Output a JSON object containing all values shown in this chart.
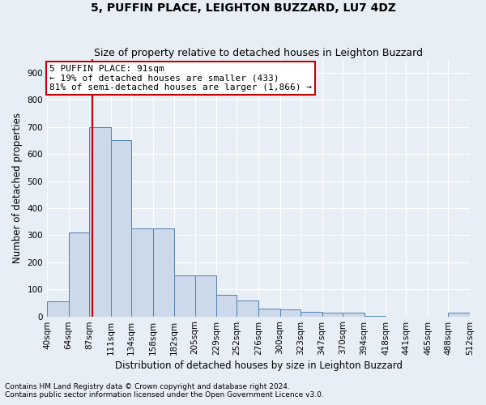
{
  "title": "5, PUFFIN PLACE, LEIGHTON BUZZARD, LU7 4DZ",
  "subtitle": "Size of property relative to detached houses in Leighton Buzzard",
  "xlabel": "Distribution of detached houses by size in Leighton Buzzard",
  "ylabel": "Number of detached properties",
  "footnote1": "Contains HM Land Registry data © Crown copyright and database right 2024.",
  "footnote2": "Contains public sector information licensed under the Open Government Licence v3.0.",
  "bin_edges": [
    40,
    64,
    87,
    111,
    134,
    158,
    182,
    205,
    229,
    252,
    276,
    300,
    323,
    347,
    370,
    394,
    418,
    441,
    465,
    488,
    512
  ],
  "bin_labels": [
    "40sqm",
    "64sqm",
    "87sqm",
    "111sqm",
    "134sqm",
    "158sqm",
    "182sqm",
    "205sqm",
    "229sqm",
    "252sqm",
    "276sqm",
    "300sqm",
    "323sqm",
    "347sqm",
    "370sqm",
    "394sqm",
    "418sqm",
    "441sqm",
    "465sqm",
    "488sqm",
    "512sqm"
  ],
  "bar_heights": [
    55,
    310,
    700,
    650,
    325,
    325,
    150,
    150,
    80,
    60,
    30,
    25,
    18,
    15,
    15,
    3,
    0,
    0,
    0,
    15
  ],
  "bar_color": "#ccd9ea",
  "bar_edge_color": "#5580b0",
  "vline_x": 91,
  "vline_color": "#cc0000",
  "annotation_text": "5 PUFFIN PLACE: 91sqm\n← 19% of detached houses are smaller (433)\n81% of semi-detached houses are larger (1,866) →",
  "annotation_box_color": "#ffffff",
  "annotation_box_edge": "#cc0000",
  "ylim": [
    0,
    950
  ],
  "yticks": [
    0,
    100,
    200,
    300,
    400,
    500,
    600,
    700,
    800,
    900
  ],
  "bg_color": "#e8eef5",
  "plot_bg_color": "#e8eef5",
  "grid_color": "#ffffff",
  "title_fontsize": 10,
  "subtitle_fontsize": 9,
  "axis_label_fontsize": 8.5,
  "tick_fontsize": 7.5,
  "annotation_fontsize": 8,
  "footnote_fontsize": 6.5
}
